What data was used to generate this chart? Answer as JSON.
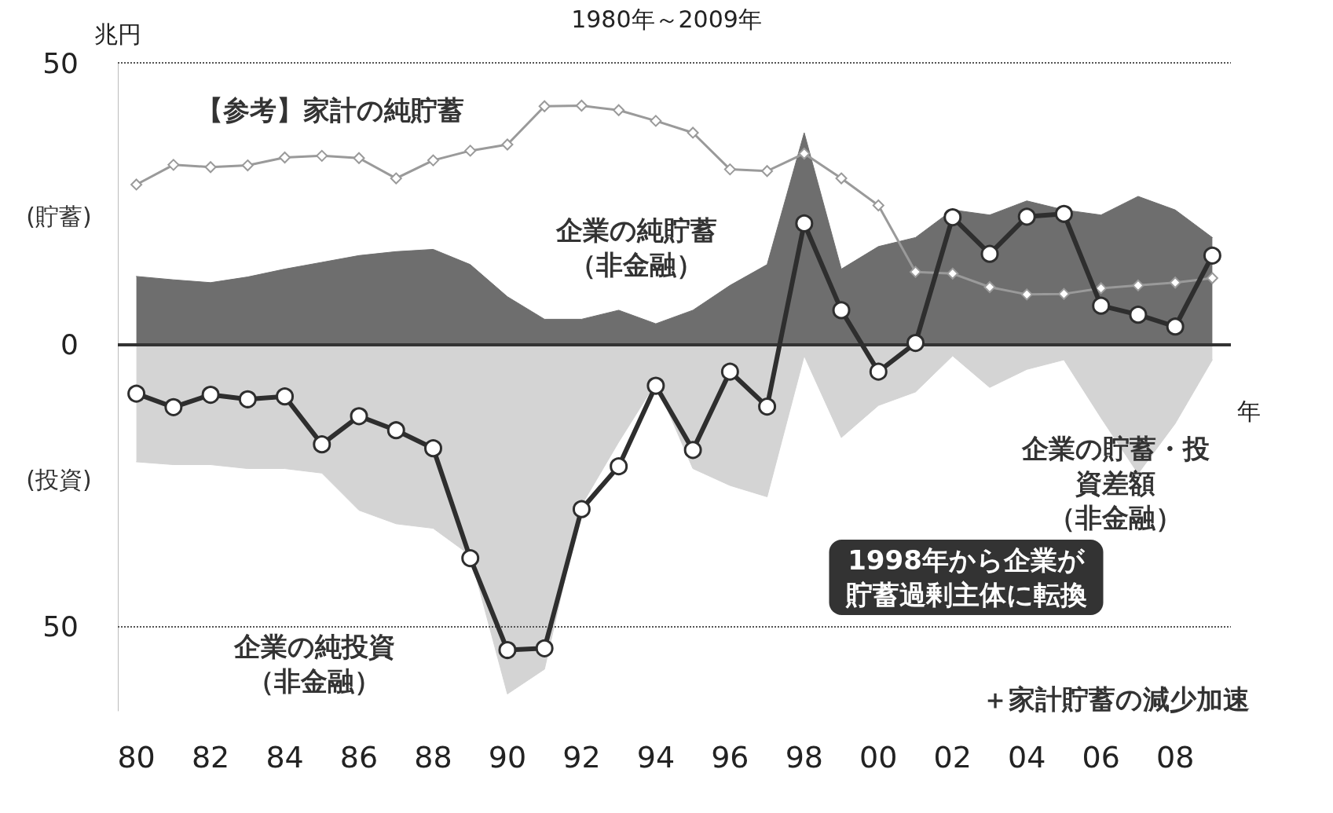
{
  "chart_data": {
    "type": "line",
    "title": "1980年～2009年",
    "xlabel": "年",
    "ylabel": "兆円",
    "x": [
      1980,
      1981,
      1982,
      1983,
      1984,
      1985,
      1986,
      1987,
      1988,
      1989,
      1990,
      1991,
      1992,
      1993,
      1994,
      1995,
      1996,
      1997,
      1998,
      1999,
      2000,
      2001,
      2002,
      2003,
      2004,
      2005,
      2006,
      2007,
      2008,
      2009
    ],
    "series": [
      {
        "type": "area",
        "color": "#6e6e6e",
        "marker": "none",
        "values": [
          12.1,
          11.5,
          11,
          12,
          13.4,
          14.6,
          15.8,
          16.5,
          16.9,
          14.2,
          8.5,
          4.5,
          4.5,
          6.1,
          3.7,
          6.1,
          10.5,
          14.2,
          37.6,
          13.4,
          17.4,
          19,
          23.9,
          23,
          25.5,
          23.9,
          23,
          26.3,
          23.9,
          19
        ]
      },
      {
        "type": "area",
        "color": "#d4d4d4",
        "marker": "none",
        "values": [
          -20.8,
          -21.3,
          -21.3,
          -22,
          -22,
          -22.8,
          -29.4,
          -31.8,
          -32.6,
          -37.4,
          -62,
          -57.6,
          -28.5,
          -17.3,
          -6.8,
          -22,
          -25,
          -27,
          -2,
          -16.5,
          -10.8,
          -8.4,
          -2,
          -7.6,
          -4.4,
          -2.7,
          -13,
          -22.9,
          -14,
          -2.7
        ]
      },
      {
        "color": "#9a9a9a",
        "marker": "diamond",
        "values": [
          28.4,
          31.9,
          31.5,
          31.8,
          33.2,
          33.5,
          33.1,
          29.5,
          32.7,
          34.4,
          35.5,
          42.3,
          42.4,
          41.6,
          39.7,
          37.6,
          31.1,
          30.8,
          33.9,
          29.5,
          24.7,
          12.9,
          12.6,
          10.2,
          8.9,
          9,
          10,
          10.5,
          11,
          11.8
        ]
      },
      {
        "color": "#2e2e2e",
        "marker": "circle",
        "values": [
          -8.7,
          -11.1,
          -8.9,
          -9.7,
          -9.2,
          -17.7,
          -12.7,
          -15.2,
          -18.4,
          -37.9,
          -54.2,
          -53.9,
          -29.2,
          -21.6,
          -7.3,
          -18.7,
          -4.8,
          -11,
          21.5,
          6.1,
          -4.8,
          0.3,
          22.6,
          16.1,
          22.7,
          23.2,
          6.9,
          5.3,
          3.2,
          15.8
        ]
      }
    ],
    "xlim": [
      1979.5,
      2009.5
    ],
    "xticks": [
      {
        "value": 1980,
        "label": "80"
      },
      {
        "value": 1982,
        "label": "82"
      },
      {
        "value": 1984,
        "label": "84"
      },
      {
        "value": 1986,
        "label": "86"
      },
      {
        "value": 1988,
        "label": "88"
      },
      {
        "value": 1990,
        "label": "90"
      },
      {
        "value": 1992,
        "label": "92"
      },
      {
        "value": 1994,
        "label": "94"
      },
      {
        "value": 1996,
        "label": "96"
      },
      {
        "value": 1998,
        "label": "98"
      },
      {
        "value": 2000,
        "label": "00"
      },
      {
        "value": 2002,
        "label": "02"
      },
      {
        "value": 2004,
        "label": "04"
      },
      {
        "value": 2006,
        "label": "06"
      },
      {
        "value": 2008,
        "label": "08"
      }
    ],
    "ylim": [
      -65,
      50
    ],
    "yticks": [
      {
        "value": -50,
        "label": "50"
      },
      0,
      50
    ],
    "ref_lines": [
      {
        "axis": "y",
        "value": 0,
        "color": "#333333",
        "line_style": "solid"
      },
      {
        "axis": "y",
        "value": 50,
        "color": "#555555",
        "line_style": "dotted"
      },
      {
        "axis": "y",
        "value": -50,
        "color": "#555555",
        "line_style": "dotted"
      }
    ],
    "annotations": [
      "(貯蓄)",
      "(投資)",
      "【参考】家計の純貯蓄",
      "企業の純貯蓄（非金融）",
      "企業の純投資（非金融）",
      "企業の貯蓄・投資差額（非金融）",
      "1998年から企業が貯蓄過剰主体に転換",
      "＋家計貯蓄の減少加速"
    ]
  }
}
